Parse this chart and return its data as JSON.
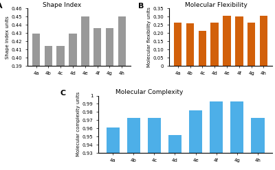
{
  "categories": [
    "4a",
    "4b",
    "4c",
    "4d",
    "4e",
    "4f",
    "4g",
    "4h"
  ],
  "shape_index": [
    0.429,
    0.414,
    0.414,
    0.429,
    0.45,
    0.436,
    0.436,
    0.45
  ],
  "shape_index_ylim": [
    0.39,
    0.46
  ],
  "shape_index_yticks": [
    0.39,
    0.4,
    0.41,
    0.42,
    0.43,
    0.44,
    0.45,
    0.46
  ],
  "shape_index_ylabel": "Shape index units",
  "shape_index_title": "Shape Index",
  "shape_index_color": "#999999",
  "mol_flex": [
    0.262,
    0.26,
    0.212,
    0.262,
    0.305,
    0.302,
    0.265,
    0.305
  ],
  "mol_flex_ylim": [
    0,
    0.35
  ],
  "mol_flex_yticks": [
    0,
    0.05,
    0.1,
    0.15,
    0.2,
    0.25,
    0.3,
    0.35
  ],
  "mol_flex_ylabel": "Molecular flexibility units",
  "mol_flex_title": "Molecular Flexibility",
  "mol_flex_color": "#D2600A",
  "mol_complex": [
    0.961,
    0.973,
    0.973,
    0.952,
    0.982,
    0.993,
    0.993,
    0.973
  ],
  "mol_complex_ylim": [
    0.93,
    1.0
  ],
  "mol_complex_yticks": [
    0.93,
    0.94,
    0.95,
    0.96,
    0.97,
    0.98,
    0.99,
    1.0
  ],
  "mol_complex_ylabel": "Molecular complexity units",
  "mol_complex_title": "Molecular Complexity",
  "mol_complex_color": "#4DAFE8",
  "label_A": "A",
  "label_B": "B",
  "label_C": "C"
}
